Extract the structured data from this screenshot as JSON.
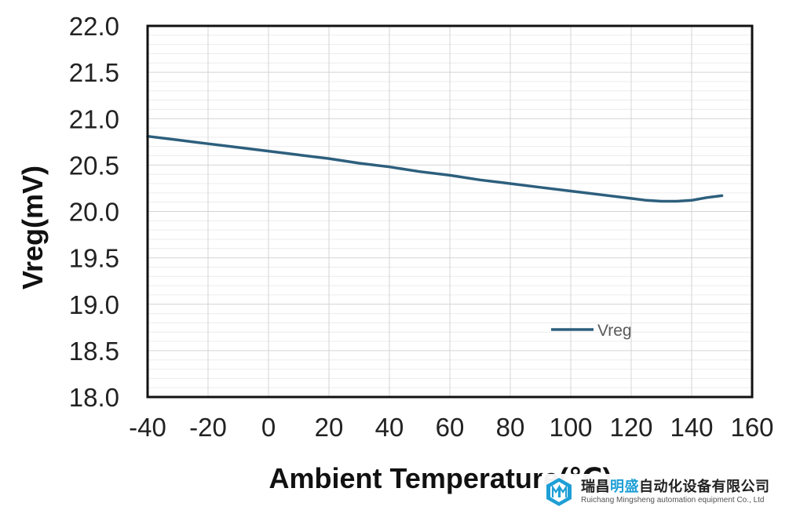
{
  "chart_data": {
    "type": "line",
    "title": "",
    "xlabel": "Ambient Temperature(℃)",
    "ylabel": "Vreg(mV)",
    "xlim": [
      -40,
      160
    ],
    "ylim": [
      18.0,
      22.0
    ],
    "x_ticks": [
      "-40",
      "-20",
      "0",
      "20",
      "40",
      "60",
      "80",
      "100",
      "120",
      "140",
      "160"
    ],
    "y_ticks": [
      "22.0",
      "21.5",
      "21.0",
      "20.5",
      "20.0",
      "19.5",
      "19.0",
      "18.5",
      "18.0"
    ],
    "grid": true,
    "legend_position": "center-right",
    "series": [
      {
        "name": "Vreg",
        "color": "#2d5f7d",
        "x": [
          -40,
          -30,
          -20,
          -10,
          0,
          10,
          20,
          30,
          40,
          50,
          60,
          70,
          80,
          90,
          100,
          110,
          120,
          125,
          130,
          135,
          140,
          145,
          150
        ],
        "y": [
          20.81,
          20.77,
          20.73,
          20.69,
          20.65,
          20.61,
          20.57,
          20.52,
          20.48,
          20.43,
          20.39,
          20.34,
          20.3,
          20.26,
          20.22,
          20.18,
          20.14,
          20.12,
          20.11,
          20.11,
          20.12,
          20.15,
          20.17
        ]
      }
    ]
  },
  "watermark": {
    "company_cn_prefix": "瑞昌",
    "company_cn_highlight": "明盛",
    "company_cn_suffix": "自动化设备有限公司",
    "company_en": "Ruichang Mingsheng automation equipment Co., Ltd",
    "accent_color": "#1e9fd6"
  }
}
